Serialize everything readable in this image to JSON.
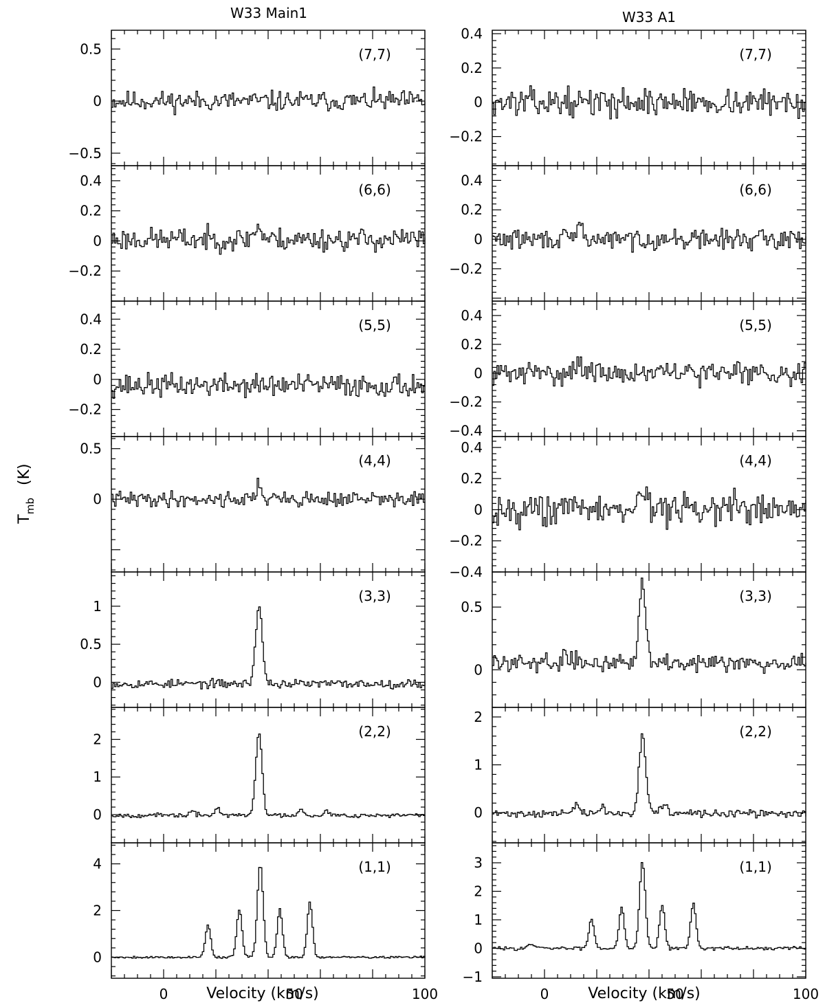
{
  "figure": {
    "ylabel_main": "T",
    "ylabel_sub": "mb",
    "ylabel_unit": "(K)",
    "xlabel": "Velocity (km/s)",
    "x_ticks": [
      "0",
      "50",
      "100"
    ]
  },
  "chart_data": [
    {
      "type": "line",
      "title": "W33 Main1",
      "xlabel": "Velocity (km/s)",
      "ylabel": "Tmb (K)",
      "xlim": [
        -20,
        100
      ],
      "panels": [
        {
          "transition": "(7,7)",
          "ylim": [
            -0.62,
            0.68
          ],
          "yticks": [
            -0.5,
            0,
            0.5
          ],
          "ytick_labels": [
            "−0.5",
            "0",
            "0.5"
          ],
          "noise": 0.05,
          "base": 0,
          "lines": [],
          "seed": 11
        },
        {
          "transition": "(6,6)",
          "ylim": [
            -0.4,
            0.5
          ],
          "yticks": [
            -0.2,
            0,
            0.2,
            0.4
          ],
          "ytick_labels": [
            "−0.2",
            "0",
            "0.2",
            "0.4"
          ],
          "noise": 0.04,
          "base": 0.01,
          "lines": [
            {
              "v": 36,
              "a": 0.08,
              "w": 1.5
            }
          ],
          "seed": 23
        },
        {
          "transition": "(5,5)",
          "ylim": [
            -0.38,
            0.52
          ],
          "yticks": [
            -0.2,
            0,
            0.2,
            0.4
          ],
          "ytick_labels": [
            "−0.2",
            "0",
            "0.2",
            "0.4"
          ],
          "noise": 0.04,
          "base": -0.04,
          "lines": [],
          "seed": 37
        },
        {
          "transition": "(4,4)",
          "ylim": [
            -0.72,
            0.62
          ],
          "yticks": [
            0,
            0.5
          ],
          "ytick_labels": [
            "0",
            "0.5"
          ],
          "noise": 0.04,
          "base": 0.0,
          "lines": [
            {
              "v": 36.5,
              "a": 0.16,
              "w": 1.0
            }
          ],
          "seed": 41
        },
        {
          "transition": "(3,3)",
          "ylim": [
            -0.33,
            1.45
          ],
          "yticks": [
            0,
            0.5,
            1
          ],
          "ytick_labels": [
            "0",
            "0.5",
            "1"
          ],
          "noise": 0.03,
          "base": -0.02,
          "lines": [
            {
              "v": 36.5,
              "a": 1.0,
              "w": 1.3
            }
          ],
          "seed": 53
        },
        {
          "transition": "(2,2)",
          "ylim": [
            -0.75,
            2.85
          ],
          "yticks": [
            0,
            1,
            2
          ],
          "ytick_labels": [
            "0",
            "1",
            "2"
          ],
          "noise": 0.03,
          "base": -0.02,
          "lines": [
            {
              "v": 36.5,
              "a": 2.2,
              "w": 1.2
            },
            {
              "v": 20.5,
              "a": 0.2,
              "w": 1.0
            },
            {
              "v": 52.5,
              "a": 0.18,
              "w": 1.0
            },
            {
              "v": 11,
              "a": 0.1,
              "w": 1.0
            },
            {
              "v": 62,
              "a": 0.12,
              "w": 1.0
            }
          ],
          "seed": 67
        },
        {
          "transition": "(1,1)",
          "ylim": [
            -0.9,
            4.9
          ],
          "yticks": [
            0,
            2,
            4
          ],
          "ytick_labels": [
            "0",
            "2",
            "4"
          ],
          "noise": 0.025,
          "base": 0.0,
          "lines": [
            {
              "v": 17,
              "a": 1.4,
              "w": 1.0
            },
            {
              "v": 29,
              "a": 2.05,
              "w": 1.0
            },
            {
              "v": 37,
              "a": 4.0,
              "w": 1.1
            },
            {
              "v": 44.5,
              "a": 2.05,
              "w": 1.0
            },
            {
              "v": 56,
              "a": 2.35,
              "w": 1.0
            }
          ],
          "seed": 79
        }
      ]
    },
    {
      "type": "line",
      "title": "W33 A1",
      "xlabel": "Velocity (km/s)",
      "ylabel": "Tmb (K)",
      "xlim": [
        -20,
        100
      ],
      "panels": [
        {
          "transition": "(7,7)",
          "ylim": [
            -0.37,
            0.42
          ],
          "yticks": [
            -0.2,
            0,
            0.2,
            0.4
          ],
          "ytick_labels": [
            "−0.2",
            "0",
            "0.2",
            "0.4"
          ],
          "noise": 0.04,
          "base": 0,
          "lines": [],
          "seed": 13
        },
        {
          "transition": "(6,6)",
          "ylim": [
            -0.42,
            0.5
          ],
          "yticks": [
            -0.2,
            0,
            0.2,
            0.4
          ],
          "ytick_labels": [
            "−0.2",
            "0",
            "0.2",
            "0.4"
          ],
          "noise": 0.035,
          "base": 0,
          "lines": [
            {
              "v": 13.5,
              "a": 0.1,
              "w": 1.0
            }
          ],
          "seed": 29
        },
        {
          "transition": "(5,5)",
          "ylim": [
            -0.44,
            0.5
          ],
          "yticks": [
            -0.4,
            -0.2,
            0,
            0.2,
            0.4
          ],
          "ytick_labels": [
            "−0.4",
            "−0.2",
            "0",
            "0.2",
            "0.4"
          ],
          "noise": 0.04,
          "base": 0.0,
          "lines": [
            {
              "v": 12.5,
              "a": 0.1,
              "w": 1.0
            },
            {
              "v": 74,
              "a": 0.06,
              "w": 1.0
            }
          ],
          "seed": 31
        },
        {
          "transition": "(4,4)",
          "ylim": [
            -0.4,
            0.47
          ],
          "yticks": [
            -0.4,
            -0.2,
            0,
            0.2,
            0.4
          ],
          "ytick_labels": [
            "−0.4",
            "−0.2",
            "0",
            "0.2",
            "0.4"
          ],
          "noise": 0.055,
          "base": 0.0,
          "lines": [
            {
              "v": 37.5,
              "a": 0.12,
              "w": 2.0
            }
          ],
          "seed": 43
        },
        {
          "transition": "(3,3)",
          "ylim": [
            -0.3,
            0.78
          ],
          "yticks": [
            0,
            0.5
          ],
          "ytick_labels": [
            "0",
            "0.5"
          ],
          "noise": 0.035,
          "base": 0.06,
          "lines": [
            {
              "v": 37.5,
              "a": 0.62,
              "w": 1.3
            },
            {
              "v": 7.5,
              "a": 0.12,
              "w": 0.5
            }
          ],
          "seed": 59
        },
        {
          "transition": "(2,2)",
          "ylim": [
            -0.63,
            2.2
          ],
          "yticks": [
            0,
            1,
            2
          ],
          "ytick_labels": [
            "0",
            "1",
            "2"
          ],
          "noise": 0.04,
          "base": -0.02,
          "lines": [
            {
              "v": 37.5,
              "a": 1.65,
              "w": 1.3
            },
            {
              "v": 12,
              "a": 0.15,
              "w": 1.5
            },
            {
              "v": 22,
              "a": 0.15,
              "w": 1.0
            },
            {
              "v": 45.5,
              "a": 0.18,
              "w": 1.5
            }
          ],
          "seed": 71
        },
        {
          "transition": "(1,1)",
          "ylim": [
            -1.05,
            3.7
          ],
          "yticks": [
            -1,
            0,
            1,
            2,
            3
          ],
          "ytick_labels": [
            "−1",
            "0",
            "1",
            "2",
            "3"
          ],
          "noise": 0.03,
          "base": 0.0,
          "lines": [
            {
              "v": 18,
              "a": 1.05,
              "w": 1.0
            },
            {
              "v": 29.5,
              "a": 1.45,
              "w": 1.0
            },
            {
              "v": 37.5,
              "a": 3.05,
              "w": 1.1
            },
            {
              "v": 45,
              "a": 1.55,
              "w": 1.0
            },
            {
              "v": 57,
              "a": 1.6,
              "w": 1.0
            },
            {
              "v": -5,
              "a": 0.12,
              "w": 1.5
            }
          ],
          "seed": 83
        }
      ]
    }
  ]
}
